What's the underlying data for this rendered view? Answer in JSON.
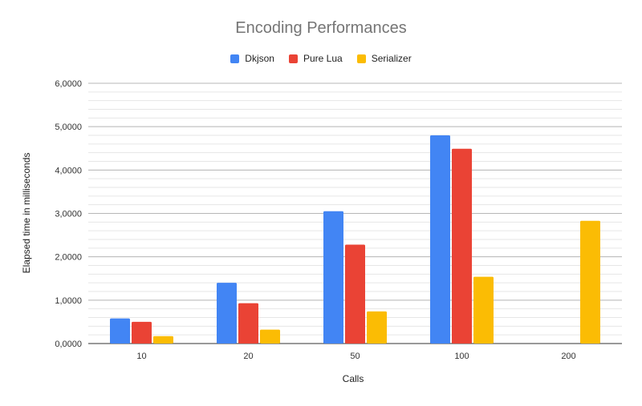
{
  "chart_data": {
    "type": "bar",
    "title": "Encoding Performances",
    "xlabel": "Calls",
    "ylabel": "Elapsed time in milliseconds",
    "categories": [
      "10",
      "20",
      "50",
      "100",
      "200"
    ],
    "series": [
      {
        "name": "Dkjson",
        "color": "#4285f4",
        "values": [
          0.58,
          1.4,
          3.05,
          4.8,
          null
        ]
      },
      {
        "name": "Pure Lua",
        "color": "#ea4335",
        "values": [
          0.5,
          0.93,
          2.28,
          4.49,
          null
        ]
      },
      {
        "name": "Serializer",
        "color": "#fbbc04",
        "values": [
          0.17,
          0.32,
          0.74,
          1.54,
          2.83
        ]
      }
    ],
    "ylim": [
      0,
      6
    ],
    "yticks": [
      0,
      1,
      2,
      3,
      4,
      5,
      6
    ],
    "ytick_labels": [
      "0,0000",
      "1,0000",
      "2,0000",
      "3,0000",
      "4,0000",
      "5,0000",
      "6,0000"
    ],
    "grid": true,
    "legend_position": "top-center"
  }
}
